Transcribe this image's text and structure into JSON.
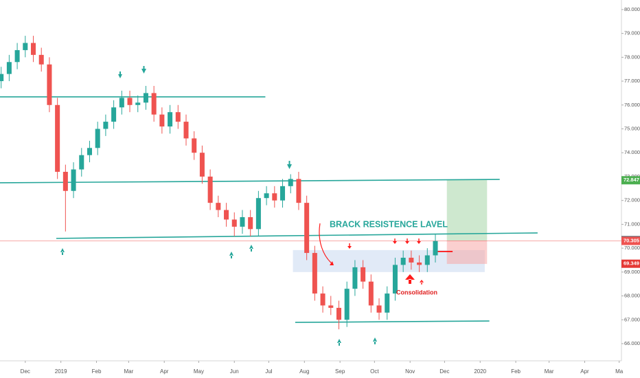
{
  "chart_data": {
    "type": "candlestick",
    "x": [
      -52,
      -45,
      -38,
      -31,
      -24,
      -17,
      -10,
      -3,
      4,
      11,
      18,
      25,
      32,
      39,
      46,
      53,
      60,
      67,
      74,
      81,
      88,
      95,
      102,
      109,
      116,
      123,
      130,
      137,
      144,
      151,
      158,
      165,
      172,
      179,
      186,
      193,
      200,
      207,
      214,
      221,
      228,
      235,
      242,
      249,
      256,
      263,
      270,
      277,
      284,
      291,
      298,
      305,
      312,
      319,
      326
    ],
    "open": [
      77.0,
      77.3,
      77.8,
      78.3,
      78.6,
      78.1,
      77.7,
      76.0,
      73.2,
      72.4,
      73.3,
      73.9,
      74.2,
      75.0,
      75.3,
      75.9,
      76.3,
      76.0,
      76.1,
      76.5,
      75.6,
      75.1,
      75.7,
      75.3,
      74.6,
      74.0,
      73.0,
      71.9,
      71.6,
      71.2,
      70.9,
      71.3,
      70.8,
      72.1,
      72.3,
      72.0,
      72.6,
      72.9,
      71.9,
      69.8,
      68.1,
      67.6,
      67.5,
      67.0,
      68.3,
      69.2,
      68.6,
      67.6,
      67.3,
      68.1,
      69.3,
      69.6,
      69.4,
      69.3,
      69.7
    ],
    "high": [
      77.6,
      78.1,
      78.6,
      78.9,
      78.9,
      78.4,
      78.0,
      76.3,
      73.5,
      73.6,
      74.2,
      74.5,
      75.3,
      75.6,
      76.2,
      76.6,
      76.6,
      76.4,
      76.8,
      76.8,
      75.9,
      76.0,
      76.0,
      75.6,
      74.9,
      74.3,
      73.3,
      72.2,
      71.9,
      71.5,
      71.6,
      71.6,
      72.4,
      72.6,
      72.6,
      72.9,
      73.1,
      73.2,
      72.2,
      70.1,
      68.4,
      68.0,
      67.8,
      68.6,
      69.5,
      69.5,
      68.9,
      67.9,
      68.4,
      69.6,
      69.9,
      69.9,
      69.7,
      70.0,
      70.6
    ],
    "low": [
      76.7,
      77.0,
      77.5,
      78.0,
      77.8,
      77.4,
      75.7,
      72.9,
      70.7,
      72.1,
      73.0,
      73.6,
      73.9,
      74.7,
      75.0,
      75.6,
      75.7,
      75.7,
      75.8,
      75.3,
      74.8,
      74.8,
      75.0,
      74.3,
      73.7,
      72.7,
      71.6,
      71.3,
      70.9,
      70.5,
      70.6,
      70.5,
      70.5,
      71.8,
      71.7,
      71.7,
      72.3,
      71.6,
      69.5,
      67.8,
      67.3,
      67.2,
      66.6,
      66.7,
      68.0,
      68.3,
      67.3,
      67.0,
      67.0,
      67.8,
      69.0,
      69.1,
      69.0,
      69.0,
      69.4
    ],
    "close": [
      77.3,
      77.8,
      78.3,
      78.6,
      78.1,
      77.7,
      76.0,
      73.2,
      72.4,
      73.3,
      73.9,
      74.2,
      75.0,
      75.3,
      75.9,
      76.3,
      76.0,
      76.1,
      76.5,
      75.6,
      75.1,
      75.7,
      75.3,
      74.6,
      74.0,
      73.0,
      71.9,
      71.6,
      71.2,
      70.9,
      71.3,
      70.8,
      72.1,
      72.3,
      72.0,
      72.6,
      72.9,
      71.9,
      69.8,
      68.1,
      67.6,
      67.5,
      67.0,
      68.3,
      69.2,
      68.6,
      67.6,
      67.3,
      68.1,
      69.3,
      69.6,
      69.4,
      69.3,
      69.7,
      70.3
    ],
    "up_color": "#26a69a",
    "down_color": "#ef5350",
    "xlim": [
      -53,
      488
    ],
    "ylim": [
      65.28,
      80.4
    ],
    "xticks": [
      {
        "value": -31,
        "label": "Dec"
      },
      {
        "value": 0,
        "label": "2019"
      },
      {
        "value": 31,
        "label": "Feb"
      },
      {
        "value": 59,
        "label": "Mar"
      },
      {
        "value": 90,
        "label": "Apr"
      },
      {
        "value": 120,
        "label": "May"
      },
      {
        "value": 151,
        "label": "Jun"
      },
      {
        "value": 181,
        "label": "Jul"
      },
      {
        "value": 212,
        "label": "Aug"
      },
      {
        "value": 243,
        "label": "Sep"
      },
      {
        "value": 273,
        "label": "Oct"
      },
      {
        "value": 304,
        "label": "Nov"
      },
      {
        "value": 334,
        "label": "Dec"
      },
      {
        "value": 365,
        "label": "2020"
      },
      {
        "value": 396,
        "label": "Feb"
      },
      {
        "value": 425,
        "label": "Mar"
      },
      {
        "value": 456,
        "label": "Apr"
      },
      {
        "value": 486,
        "label": "Ma"
      }
    ],
    "yticks": [
      {
        "value": 66,
        "label": "66.000"
      },
      {
        "value": 67,
        "label": "67.000"
      },
      {
        "value": 68,
        "label": "68.000"
      },
      {
        "value": 69,
        "label": "69.000"
      },
      {
        "value": 70,
        "label": "70.000"
      },
      {
        "value": 71,
        "label": "71.000"
      },
      {
        "value": 72,
        "label": "72.000"
      },
      {
        "value": 73,
        "label": "73.000"
      },
      {
        "value": 74,
        "label": "74.000"
      },
      {
        "value": 75,
        "label": "75.000"
      },
      {
        "value": 76,
        "label": "76.000"
      },
      {
        "value": 77,
        "label": "77.000"
      },
      {
        "value": 78,
        "label": "78.000"
      },
      {
        "value": 79,
        "label": "79.000"
      },
      {
        "value": 80,
        "label": "80.000"
      }
    ],
    "lines": [
      {
        "x": [
          -53,
          178
        ],
        "y": [
          76.34,
          76.34
        ],
        "color": "#26a69a"
      },
      {
        "x": [
          -53,
          382
        ],
        "y": [
          72.74,
          72.88
        ],
        "color": "#26a69a"
      },
      {
        "x": [
          -4,
          415
        ],
        "y": [
          70.41,
          70.64
        ],
        "color": "#26a69a"
      },
      {
        "x": [
          204,
          373
        ],
        "y": [
          66.89,
          66.95
        ],
        "color": "#26a69a"
      },
      {
        "x": [
          326,
          341
        ],
        "y": [
          69.86,
          69.86
        ],
        "color": "#ff0000"
      }
    ],
    "zones": [
      {
        "x": [
          202,
          369
        ],
        "y": [
          69.0,
          69.92
        ],
        "color": "#c8d8f0"
      },
      {
        "x": [
          336,
          371
        ],
        "y": [
          70.32,
          72.88
        ],
        "color": "#a5d6a7"
      },
      {
        "x": [
          336,
          371
        ],
        "y": [
          69.34,
          70.32
        ],
        "color": "#f8a8a8"
      }
    ],
    "price_labels": [
      {
        "value": 72.847,
        "color": "#4caf50",
        "line": false
      },
      {
        "value": 70.338,
        "color": "#5d606b",
        "line": false
      },
      {
        "value": 70.305,
        "color": "#ef5350",
        "line": true
      },
      {
        "value": 69.349,
        "color": "#e53935",
        "line": false
      }
    ],
    "annotations": [
      {
        "text": "BRACK RESISTENCE LAVEL",
        "color": "#26a69a"
      },
      {
        "text": "Consolidation",
        "color": "#e02020"
      }
    ]
  }
}
